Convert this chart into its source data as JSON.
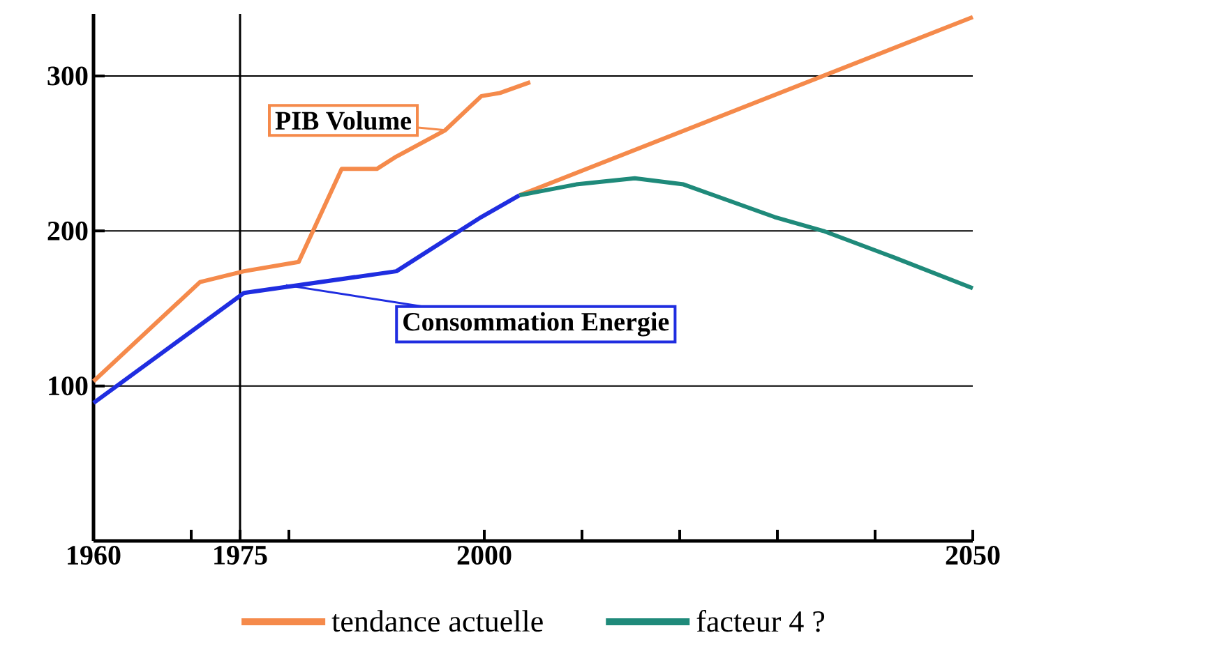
{
  "chart_data": {
    "type": "line",
    "x": [
      1960,
      1970.9,
      1975.4,
      1981,
      1985.4,
      1989,
      1991,
      1996,
      1999.7,
      2001.6,
      2004.7
    ],
    "xlim": [
      1960,
      2050
    ],
    "ylim": [
      0,
      340
    ],
    "xticks": [
      1960,
      {
        "value": 1970,
        "label": null
      },
      1975,
      {
        "value": 1980,
        "label": null
      },
      2000,
      {
        "value": 2010,
        "label": null
      },
      {
        "value": 2020,
        "label": null
      },
      {
        "value": 2030,
        "label": null
      },
      {
        "value": 2040,
        "label": null
      },
      2050
    ],
    "yticks": [
      100,
      200,
      300
    ],
    "grid": "y",
    "legend": "bottom",
    "marker": "none",
    "line_style": "solid",
    "series": [
      {
        "color": "#f58a4b",
        "values": [
          103,
          167,
          174,
          180,
          240,
          240,
          248,
          265,
          287,
          289,
          296
        ]
      },
      {
        "color": "#1f2de0",
        "x": [
          1960,
          1975.4,
          1991,
          1999.7,
          2003.6
        ],
        "values": [
          89,
          160,
          174,
          209,
          223
        ]
      },
      {
        "name": "tendance actuelle",
        "color": "#f58a4b",
        "x": [
          2003.6,
          2050
        ],
        "values": [
          223,
          338
        ]
      },
      {
        "name": "facteur 4 ?",
        "color": "#1f8a7a",
        "x": [
          2003.6,
          2009.4,
          2015.4,
          2020.4,
          2029.7,
          2034.7,
          2041.9,
          2050
        ],
        "values": [
          223,
          230,
          234,
          230,
          209,
          200,
          183,
          163
        ]
      }
    ],
    "ref_lines": [
      {
        "axis": "x",
        "value": 1975
      }
    ],
    "annotations": [
      {
        "text": "PIB Volume",
        "x": 1996,
        "y": 265
      },
      {
        "text": "Consommation Energie",
        "x": 1979.7,
        "y": 165
      }
    ]
  }
}
